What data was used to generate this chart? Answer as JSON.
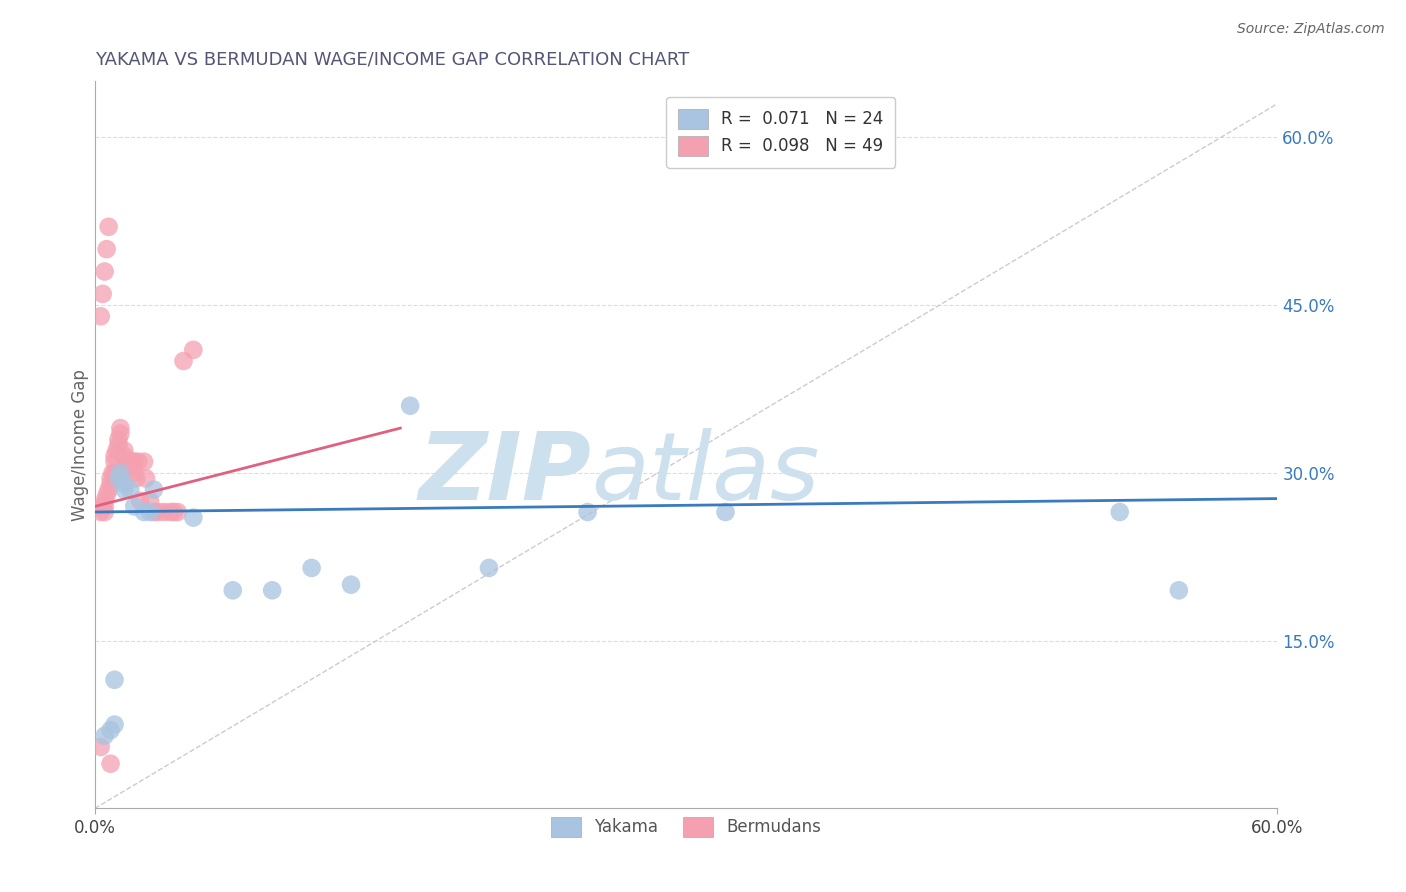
{
  "title": "YAKAMA VS BERMUDAN WAGE/INCOME GAP CORRELATION CHART",
  "source": "Source: ZipAtlas.com",
  "ylabel": "Wage/Income Gap",
  "right_yticks": [
    0.15,
    0.3,
    0.45,
    0.6
  ],
  "right_yticklabels": [
    "15.0%",
    "30.0%",
    "45.0%",
    "60.0%"
  ],
  "xlim": [
    0.0,
    0.6
  ],
  "ylim": [
    0.0,
    0.65
  ],
  "yakama_R": 0.071,
  "yakama_N": 24,
  "bermuda_R": 0.098,
  "bermuda_N": 49,
  "yakama_color": "#a8c4e0",
  "bermuda_color": "#f4a0b0",
  "yakama_line_color": "#3a7abf",
  "bermuda_line_color": "#e06080",
  "diagonal_color": "#cccccc",
  "watermark_color": "#cde0ee",
  "watermark_text": "ZIPatlas",
  "grid_color": "#dddddd",
  "background_color": "#ffffff",
  "yakama_x": [
    0.005,
    0.008,
    0.01,
    0.01,
    0.012,
    0.013,
    0.015,
    0.015,
    0.018,
    0.02,
    0.025,
    0.028,
    0.03,
    0.05,
    0.07,
    0.09,
    0.11,
    0.13,
    0.16,
    0.2,
    0.25,
    0.32,
    0.52,
    0.55
  ],
  "yakama_y": [
    0.065,
    0.07,
    0.075,
    0.115,
    0.295,
    0.3,
    0.285,
    0.29,
    0.285,
    0.27,
    0.265,
    0.265,
    0.285,
    0.26,
    0.195,
    0.195,
    0.215,
    0.2,
    0.36,
    0.215,
    0.265,
    0.265,
    0.265,
    0.195
  ],
  "bermuda_x": [
    0.003,
    0.004,
    0.005,
    0.005,
    0.005,
    0.006,
    0.007,
    0.008,
    0.008,
    0.009,
    0.01,
    0.01,
    0.01,
    0.01,
    0.011,
    0.012,
    0.012,
    0.013,
    0.013,
    0.014,
    0.015,
    0.015,
    0.016,
    0.017,
    0.018,
    0.019,
    0.02,
    0.02,
    0.021,
    0.022,
    0.023,
    0.025,
    0.026,
    0.028,
    0.03,
    0.032,
    0.035,
    0.038,
    0.04,
    0.042,
    0.045,
    0.05,
    0.003,
    0.004,
    0.005,
    0.006,
    0.007,
    0.008,
    0.003
  ],
  "bermuda_y": [
    0.265,
    0.27,
    0.265,
    0.27,
    0.275,
    0.28,
    0.285,
    0.29,
    0.295,
    0.3,
    0.295,
    0.3,
    0.31,
    0.315,
    0.32,
    0.325,
    0.33,
    0.335,
    0.34,
    0.3,
    0.315,
    0.32,
    0.31,
    0.31,
    0.305,
    0.31,
    0.31,
    0.3,
    0.295,
    0.31,
    0.275,
    0.31,
    0.295,
    0.275,
    0.265,
    0.265,
    0.265,
    0.265,
    0.265,
    0.265,
    0.4,
    0.41,
    0.44,
    0.46,
    0.48,
    0.5,
    0.52,
    0.04,
    0.055
  ],
  "yakama_trend": [
    0.265,
    0.277
  ],
  "bermuda_trend_x": [
    0.0,
    0.155
  ],
  "bermuda_trend_y": [
    0.27,
    0.34
  ]
}
